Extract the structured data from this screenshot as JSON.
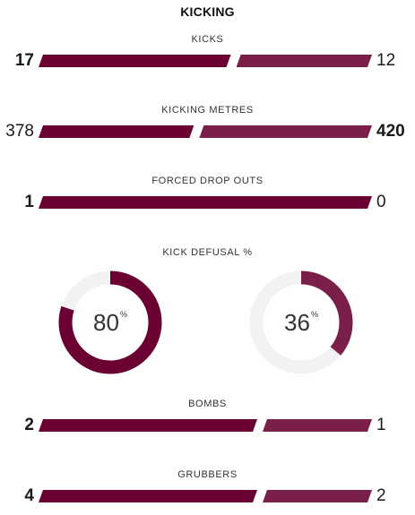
{
  "section_title": "KICKING",
  "colors": {
    "home": "#6b0033",
    "away": "#7a1f4a",
    "track": "#f2f2f2"
  },
  "stats": [
    {
      "label": "KICKS",
      "home": "17",
      "away": "12",
      "home_value": 17,
      "away_value": 12,
      "strong": "home"
    },
    {
      "label": "KICKING METRES",
      "home": "378",
      "away": "420",
      "home_value": 378,
      "away_value": 420,
      "strong": "away"
    },
    {
      "label": "FORCED DROP OUTS",
      "home": "1",
      "away": "0",
      "home_value": 1,
      "away_value": 0,
      "strong": "home"
    },
    {
      "label": "BOMBS",
      "home": "2",
      "away": "1",
      "home_value": 2,
      "away_value": 1,
      "strong": "home"
    },
    {
      "label": "GRUBBERS",
      "home": "4",
      "away": "2",
      "home_value": 4,
      "away_value": 2,
      "strong": "home"
    }
  ],
  "kick_defusal": {
    "label": "KICK DEFUSAL %",
    "home": {
      "value": "80",
      "percent": 80
    },
    "away": {
      "value": "36",
      "percent": 36
    },
    "unit": "%"
  }
}
